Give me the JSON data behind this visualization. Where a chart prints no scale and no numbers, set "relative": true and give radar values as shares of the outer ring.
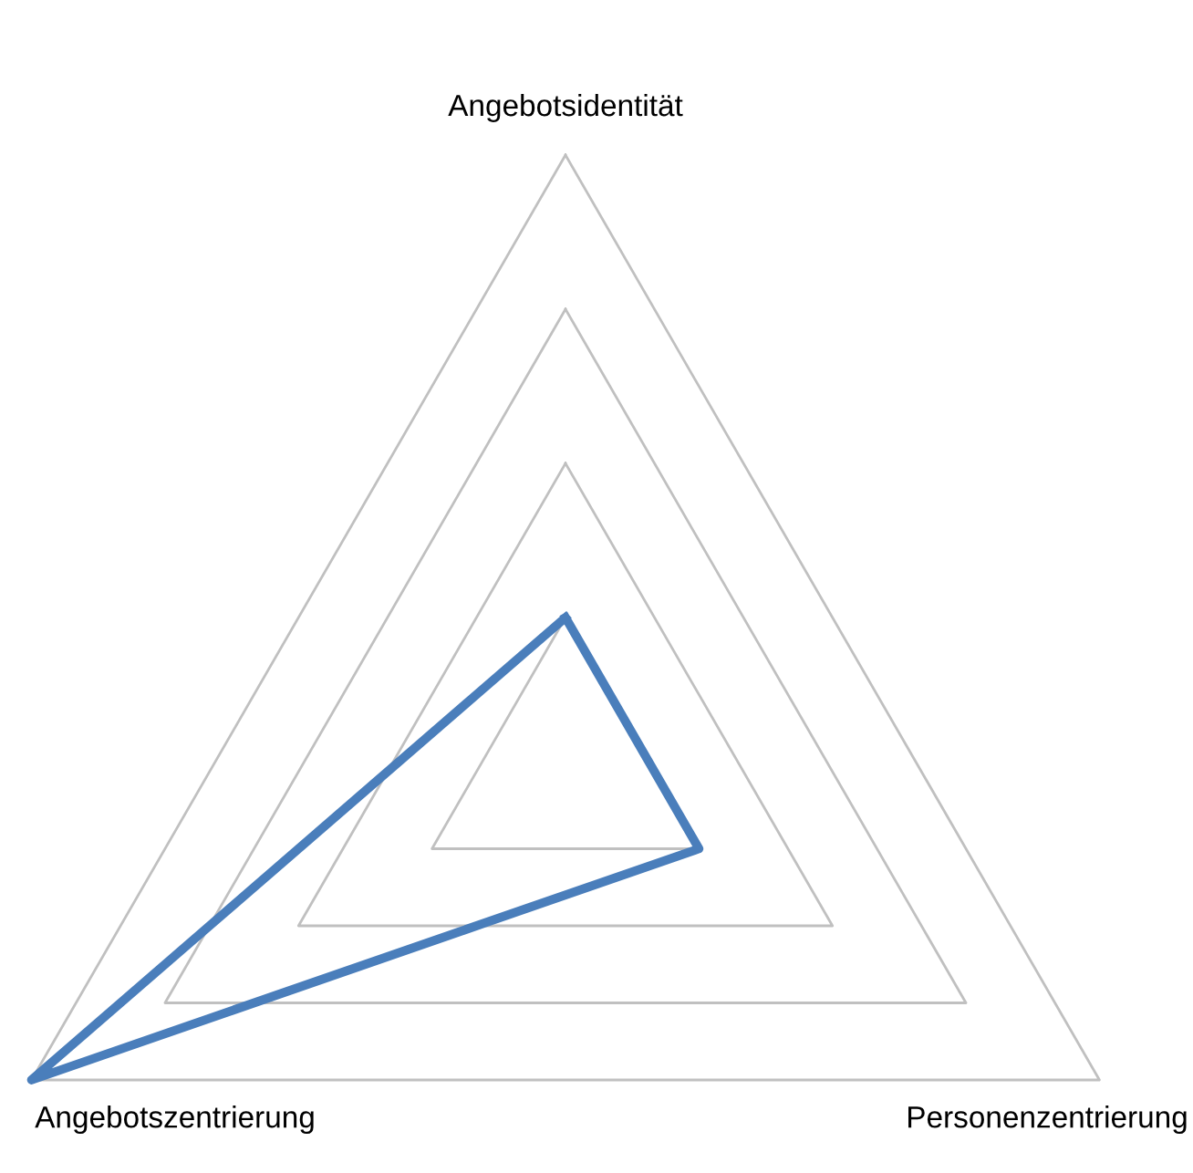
{
  "chart_data": {
    "type": "radar",
    "relative": true,
    "categories": [
      "Angebotsidentität",
      "Personenzentrierung",
      "Angebotszentrierung"
    ],
    "series": [
      {
        "color": "#4a7ebb",
        "values": [
          0.25,
          0.25,
          1.0
        ]
      }
    ],
    "grid": true
  }
}
